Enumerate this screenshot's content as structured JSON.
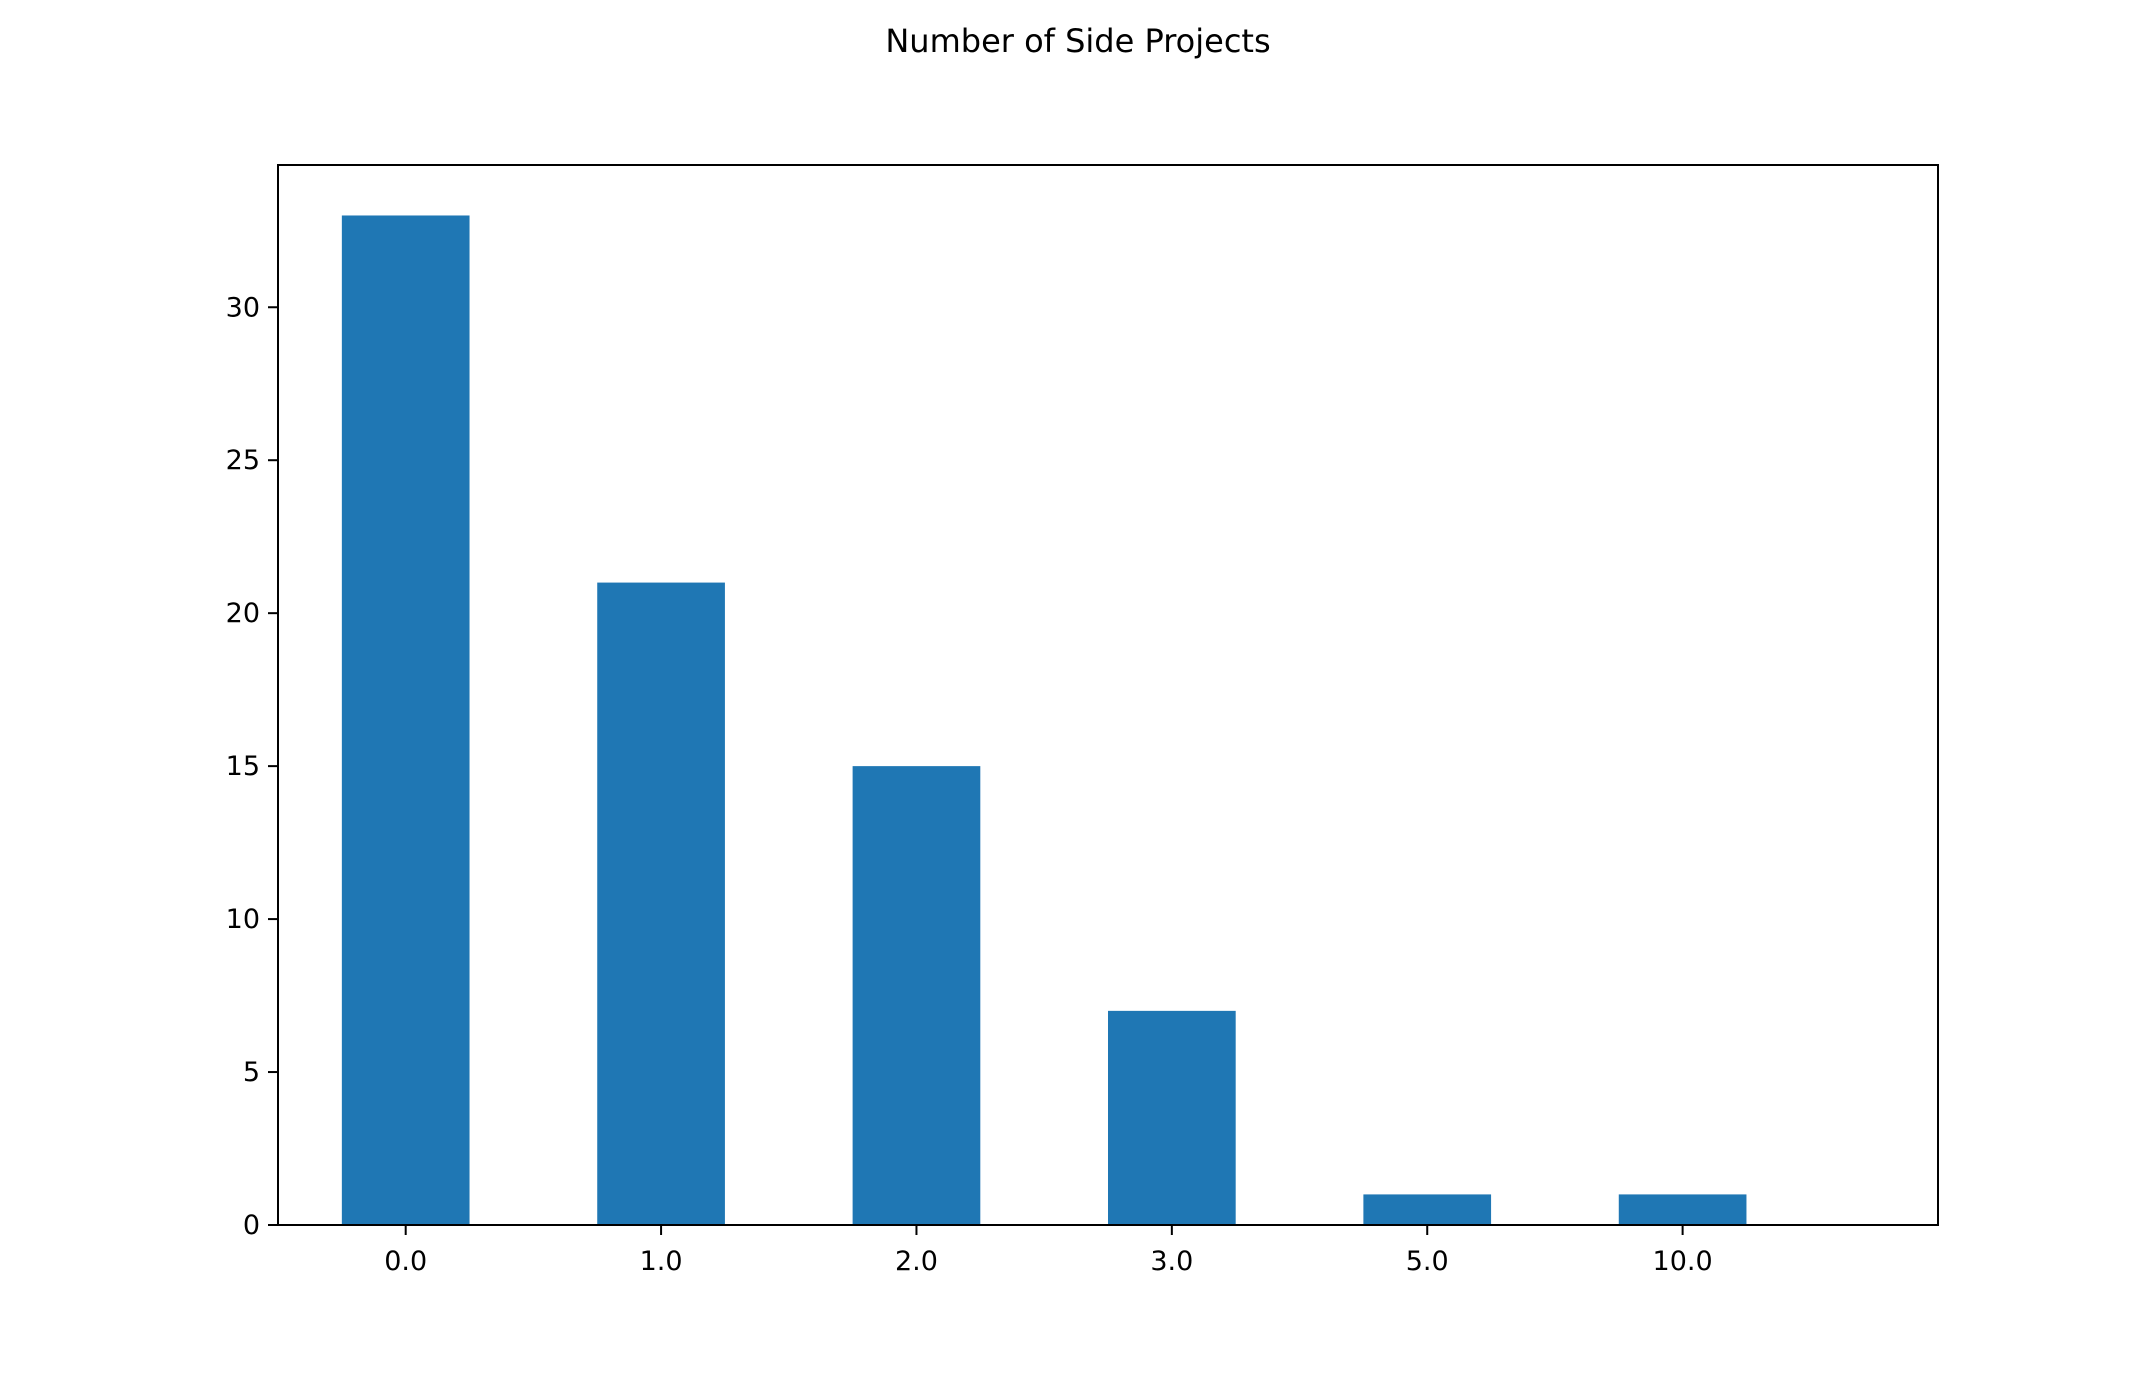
{
  "chart_data": {
    "type": "bar",
    "title": "Number of Side Projects",
    "xlabel": "",
    "ylabel": "",
    "categories": [
      "0.0",
      "1.0",
      "2.0",
      "3.0",
      "5.0",
      "10.0"
    ],
    "values": [
      33,
      21,
      15,
      7,
      1,
      1
    ],
    "ylim": [
      0,
      34.65
    ],
    "yticks": [
      0,
      5,
      10,
      15,
      20,
      25,
      30
    ],
    "grid": false,
    "legend": "none",
    "bar_color": "#1f77b4"
  }
}
